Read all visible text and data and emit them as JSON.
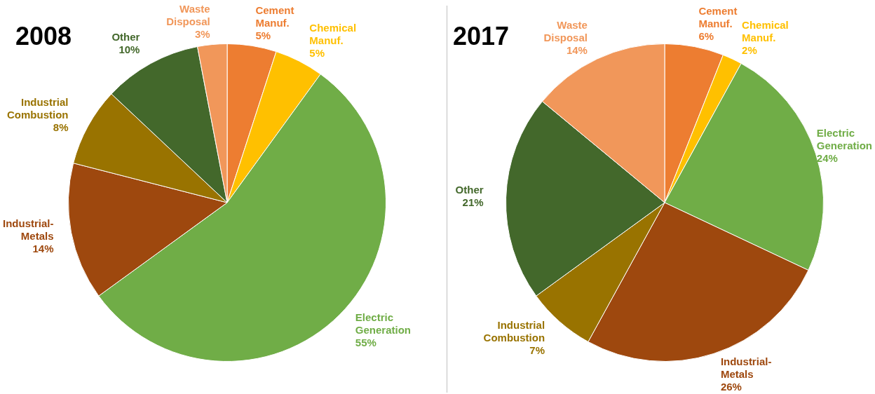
{
  "chart_data": [
    {
      "type": "pie",
      "title": "2008",
      "categories": [
        "Cement Manuf.",
        "Chemical Manuf.",
        "Electric Generation",
        "Industrial-Metals",
        "Industrial Combustion",
        "Other",
        "Waste Disposal"
      ],
      "values": [
        5,
        5,
        55,
        14,
        8,
        10,
        3
      ],
      "colors": [
        "#ed7d31",
        "#ffc000",
        "#70ad47",
        "#9e480e",
        "#997300",
        "#43682b",
        "#f1975a"
      ],
      "value_labels": [
        "5%",
        "5%",
        "55%",
        "14%",
        "8%",
        "10%",
        "3%"
      ]
    },
    {
      "type": "pie",
      "title": "2017",
      "categories": [
        "Cement Manuf.",
        "Chemical Manuf.",
        "Electric Generation",
        "Industrial-Metals",
        "Industrial Combustion",
        "Other",
        "Waste Disposal"
      ],
      "values": [
        6,
        2,
        24,
        26,
        7,
        21,
        14
      ],
      "colors": [
        "#ed7d31",
        "#ffc000",
        "#70ad47",
        "#9e480e",
        "#997300",
        "#43682b",
        "#f1975a"
      ],
      "value_labels": [
        "6%",
        "2%",
        "24%",
        "26%",
        "7%",
        "21%",
        "14%"
      ]
    }
  ]
}
